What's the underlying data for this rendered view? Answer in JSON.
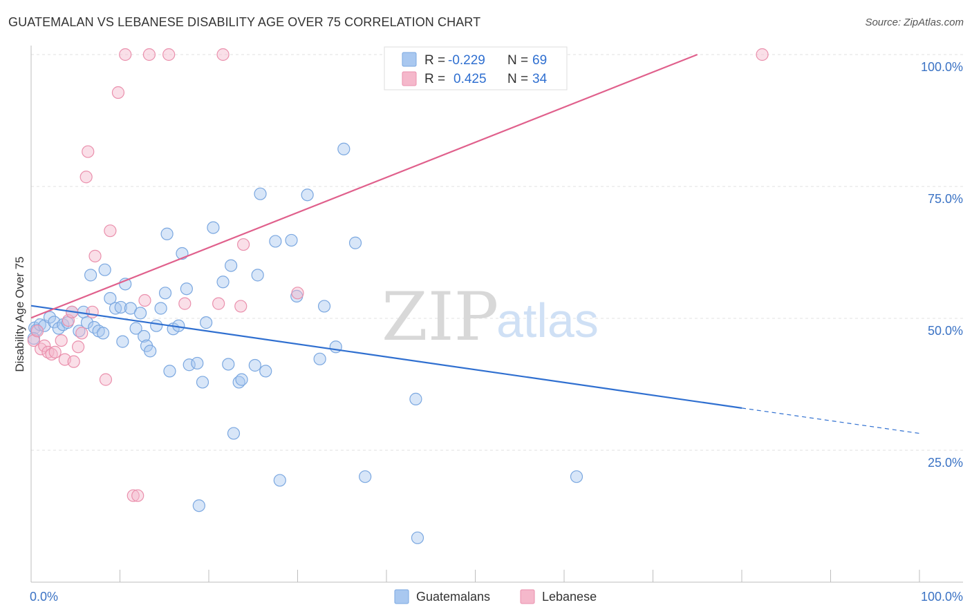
{
  "header": {
    "title": "GUATEMALAN VS LEBANESE DISABILITY AGE OVER 75 CORRELATION CHART",
    "source": "Source: ZipAtlas.com"
  },
  "watermark": {
    "zip": "ZIP",
    "atlas": "atlas"
  },
  "legend": {
    "rows": [
      {
        "r_label": "R =",
        "r_value": "-0.229",
        "n_label": "N =",
        "n_value": "69",
        "color": "#a9c8f0"
      },
      {
        "r_label": "R =",
        "r_value": "0.425",
        "n_label": "N =",
        "n_value": "34",
        "color": "#f5b8cb"
      }
    ]
  },
  "bottom_legend": [
    {
      "label": "Guatemalans",
      "color": "#a9c8f0"
    },
    {
      "label": "Lebanese",
      "color": "#f5b8cb"
    }
  ],
  "chart_data": {
    "type": "scatter",
    "title": "GUATEMALAN VS LEBANESE DISABILITY AGE OVER 75 CORRELATION CHART",
    "xlabel": "",
    "ylabel": "Disability Age Over 75",
    "xlim": [
      0,
      100
    ],
    "ylim": [
      0,
      100
    ],
    "x_tick_labels": [
      "0.0%",
      "100.0%"
    ],
    "y_tick_labels": [
      {
        "value": 25,
        "label": "25.0%"
      },
      {
        "value": 50,
        "label": "50.0%"
      },
      {
        "value": 75,
        "label": "75.0%"
      },
      {
        "value": 100,
        "label": "100.0%"
      }
    ],
    "grid": true,
    "legend_position": "top-center",
    "series": [
      {
        "name": "Guatemalans",
        "color": "#a9c8f0",
        "stroke": "#7aa7e0",
        "trend": {
          "x": [
            0,
            80
          ],
          "y": [
            52.4,
            33.0
          ],
          "dashed_to": [
            100,
            28.2
          ],
          "color": "#2f6fd0"
        },
        "points": [
          [
            0.4,
            48.2
          ],
          [
            0.6,
            47.8
          ],
          [
            1.0,
            48.8
          ],
          [
            1.5,
            48.6
          ],
          [
            2.1,
            50.2
          ],
          [
            2.6,
            49.3
          ],
          [
            3.1,
            48.1
          ],
          [
            3.6,
            48.8
          ],
          [
            4.1,
            49.2
          ],
          [
            4.6,
            51.2
          ],
          [
            5.4,
            47.6
          ],
          [
            5.9,
            51.2
          ],
          [
            6.3,
            49.2
          ],
          [
            7.1,
            48.3
          ],
          [
            7.6,
            47.6
          ],
          [
            8.1,
            47.2
          ],
          [
            8.3,
            59.2
          ],
          [
            6.7,
            58.2
          ],
          [
            8.9,
            53.8
          ],
          [
            9.5,
            51.9
          ],
          [
            10.1,
            52.1
          ],
          [
            10.3,
            45.6
          ],
          [
            10.6,
            56.5
          ],
          [
            11.2,
            51.9
          ],
          [
            11.8,
            48.1
          ],
          [
            12.3,
            51.0
          ],
          [
            12.7,
            46.6
          ],
          [
            13.0,
            44.8
          ],
          [
            13.4,
            43.8
          ],
          [
            14.1,
            48.6
          ],
          [
            14.6,
            51.9
          ],
          [
            15.1,
            54.8
          ],
          [
            15.3,
            66.0
          ],
          [
            15.6,
            40.0
          ],
          [
            16.0,
            48.0
          ],
          [
            16.6,
            48.6
          ],
          [
            17.0,
            62.3
          ],
          [
            17.5,
            55.6
          ],
          [
            17.8,
            41.2
          ],
          [
            18.7,
            41.5
          ],
          [
            18.9,
            14.5
          ],
          [
            19.3,
            37.9
          ],
          [
            19.7,
            49.2
          ],
          [
            20.5,
            67.2
          ],
          [
            21.6,
            56.9
          ],
          [
            22.2,
            41.3
          ],
          [
            22.5,
            60.0
          ],
          [
            22.8,
            28.2
          ],
          [
            23.4,
            37.9
          ],
          [
            23.7,
            38.4
          ],
          [
            25.2,
            41.1
          ],
          [
            25.5,
            58.2
          ],
          [
            25.8,
            73.6
          ],
          [
            26.4,
            40.0
          ],
          [
            27.5,
            64.6
          ],
          [
            28.0,
            19.3
          ],
          [
            29.3,
            64.8
          ],
          [
            29.9,
            54.2
          ],
          [
            31.1,
            73.4
          ],
          [
            32.5,
            42.3
          ],
          [
            33.0,
            52.3
          ],
          [
            34.3,
            44.6
          ],
          [
            35.2,
            82.1
          ],
          [
            36.5,
            64.3
          ],
          [
            37.6,
            20.0
          ],
          [
            43.3,
            34.7
          ],
          [
            43.5,
            8.4
          ],
          [
            61.4,
            20.0
          ],
          [
            0.3,
            46.2
          ]
        ]
      },
      {
        "name": "Lebanese",
        "color": "#f5b8cb",
        "stroke": "#ea8fac",
        "trend": {
          "x": [
            0,
            75
          ],
          "y": [
            50.1,
            100.0
          ],
          "color": "#e0608c"
        },
        "points": [
          [
            0.3,
            45.8
          ],
          [
            0.7,
            47.6
          ],
          [
            1.1,
            44.2
          ],
          [
            1.5,
            44.8
          ],
          [
            1.9,
            43.6
          ],
          [
            2.3,
            43.2
          ],
          [
            2.7,
            43.6
          ],
          [
            3.4,
            45.8
          ],
          [
            3.8,
            42.2
          ],
          [
            4.2,
            49.6
          ],
          [
            4.6,
            51.2
          ],
          [
            4.8,
            41.8
          ],
          [
            5.3,
            44.6
          ],
          [
            5.7,
            47.2
          ],
          [
            6.2,
            76.8
          ],
          [
            6.4,
            81.6
          ],
          [
            6.9,
            51.2
          ],
          [
            7.2,
            61.8
          ],
          [
            8.4,
            38.4
          ],
          [
            8.9,
            66.6
          ],
          [
            9.8,
            92.8
          ],
          [
            10.6,
            100.0
          ],
          [
            11.5,
            16.4
          ],
          [
            12.0,
            16.4
          ],
          [
            12.8,
            53.4
          ],
          [
            13.3,
            100.0
          ],
          [
            15.5,
            100.0
          ],
          [
            17.3,
            52.8
          ],
          [
            21.1,
            52.8
          ],
          [
            21.6,
            100.0
          ],
          [
            23.6,
            52.3
          ],
          [
            23.9,
            64.0
          ],
          [
            30.0,
            54.8
          ],
          [
            82.3,
            100.0
          ]
        ]
      }
    ]
  }
}
